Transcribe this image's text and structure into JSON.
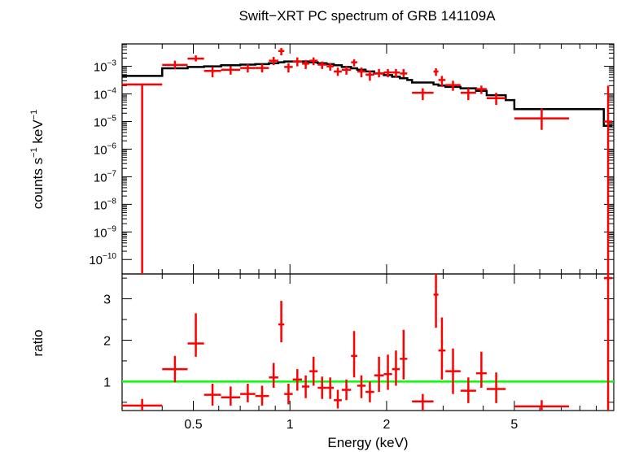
{
  "title": "Swift−XRT PC spectrum of GRB 141109A",
  "chart_data": [
    {
      "panel": "spectrum",
      "type": "scatter",
      "xscale": "log",
      "yscale": "log",
      "xlim": [
        0.3,
        10.2
      ],
      "ylim": [
        3e-11,
        0.0065
      ],
      "xlabel": "",
      "ylabel_parts": {
        "counts": "counts s",
        "exp": "−1",
        "kev": " keV",
        "exp2": "−1"
      },
      "yticks": [
        {
          "v": 0.001,
          "base": "10",
          "exp": "−3"
        },
        {
          "v": 0.0001,
          "base": "10",
          "exp": "−4"
        },
        {
          "v": 1e-05,
          "base": "10",
          "exp": "−5"
        },
        {
          "v": 1e-06,
          "base": "10",
          "exp": "−6"
        },
        {
          "v": 1e-07,
          "base": "10",
          "exp": "−7"
        },
        {
          "v": 1e-08,
          "base": "10",
          "exp": "−8"
        },
        {
          "v": 1e-09,
          "base": "10",
          "exp": "−9"
        },
        {
          "v": 1e-10,
          "base": "10",
          "exp": "−10"
        }
      ],
      "data_color": "#ff0000",
      "model_color": "#000000",
      "points": [
        {
          "xlo": 0.3,
          "xhi": 0.4,
          "y": 0.00022,
          "ylo": 3e-11,
          "yhi": 0.00022
        },
        {
          "xlo": 0.4,
          "xhi": 0.48,
          "y": 0.00112,
          "ylo": 0.0008,
          "yhi": 0.0016
        },
        {
          "xlo": 0.48,
          "xhi": 0.54,
          "y": 0.0019,
          "ylo": 0.0015,
          "yhi": 0.0025
        },
        {
          "xlo": 0.54,
          "xhi": 0.61,
          "y": 0.00068,
          "ylo": 0.0004,
          "yhi": 0.00095
        },
        {
          "xlo": 0.61,
          "xhi": 0.7,
          "y": 0.00075,
          "ylo": 0.0005,
          "yhi": 0.001
        },
        {
          "xlo": 0.7,
          "xhi": 0.78,
          "y": 0.00087,
          "ylo": 0.0006,
          "yhi": 0.0012
        },
        {
          "xlo": 0.78,
          "xhi": 0.86,
          "y": 0.00087,
          "ylo": 0.0006,
          "yhi": 0.0012
        },
        {
          "xlo": 0.86,
          "xhi": 0.92,
          "y": 0.0016,
          "ylo": 0.0011,
          "yhi": 0.0022
        },
        {
          "xlo": 0.92,
          "xhi": 0.96,
          "y": 0.0036,
          "ylo": 0.0025,
          "yhi": 0.0046
        },
        {
          "xlo": 0.96,
          "xhi": 1.02,
          "y": 0.00095,
          "ylo": 0.0006,
          "yhi": 0.0013
        },
        {
          "xlo": 1.02,
          "xhi": 1.09,
          "y": 0.0015,
          "ylo": 0.001,
          "yhi": 0.0021
        },
        {
          "xlo": 1.09,
          "xhi": 1.15,
          "y": 0.00125,
          "ylo": 0.0008,
          "yhi": 0.0017
        },
        {
          "xlo": 1.15,
          "xhi": 1.22,
          "y": 0.0016,
          "ylo": 0.0011,
          "yhi": 0.0021
        },
        {
          "xlo": 1.22,
          "xhi": 1.3,
          "y": 0.00115,
          "ylo": 0.0008,
          "yhi": 0.0015
        },
        {
          "xlo": 1.3,
          "xhi": 1.37,
          "y": 0.001,
          "ylo": 0.0007,
          "yhi": 0.0013
        },
        {
          "xlo": 1.37,
          "xhi": 1.45,
          "y": 0.00065,
          "ylo": 0.00045,
          "yhi": 0.0009
        },
        {
          "xlo": 1.45,
          "xhi": 1.55,
          "y": 0.00075,
          "ylo": 0.0005,
          "yhi": 0.001
        },
        {
          "xlo": 1.55,
          "xhi": 1.62,
          "y": 0.0014,
          "ylo": 0.001,
          "yhi": 0.0018
        },
        {
          "xlo": 1.62,
          "xhi": 1.72,
          "y": 0.00065,
          "ylo": 0.0004,
          "yhi": 0.0009
        },
        {
          "xlo": 1.72,
          "xhi": 1.83,
          "y": 0.0005,
          "ylo": 0.0003,
          "yhi": 0.0007
        },
        {
          "xlo": 1.83,
          "xhi": 1.96,
          "y": 0.00055,
          "ylo": 0.0004,
          "yhi": 0.0008
        },
        {
          "xlo": 1.96,
          "xhi": 2.08,
          "y": 0.0006,
          "ylo": 0.0004,
          "yhi": 0.0008
        },
        {
          "xlo": 2.08,
          "xhi": 2.2,
          "y": 0.0006,
          "ylo": 0.0004,
          "yhi": 0.0008
        },
        {
          "xlo": 2.2,
          "xhi": 2.32,
          "y": 0.00055,
          "ylo": 0.0004,
          "yhi": 0.0008
        },
        {
          "xlo": 2.4,
          "xhi": 2.8,
          "y": 0.00011,
          "ylo": 6e-05,
          "yhi": 0.00016
        },
        {
          "xlo": 2.8,
          "xhi": 2.9,
          "y": 0.00065,
          "ylo": 0.00045,
          "yhi": 0.00085
        },
        {
          "xlo": 2.9,
          "xhi": 3.05,
          "y": 0.00032,
          "ylo": 0.00018,
          "yhi": 0.00045
        },
        {
          "xlo": 3.05,
          "xhi": 3.4,
          "y": 0.00021,
          "ylo": 0.00013,
          "yhi": 0.0003
        },
        {
          "xlo": 3.4,
          "xhi": 3.8,
          "y": 0.00011,
          "ylo": 6e-05,
          "yhi": 0.00016
        },
        {
          "xlo": 3.8,
          "xhi": 4.1,
          "y": 0.00015,
          "ylo": 0.0001,
          "yhi": 0.0002
        },
        {
          "xlo": 4.1,
          "xhi": 4.7,
          "y": 7e-05,
          "ylo": 4e-05,
          "yhi": 0.00011
        },
        {
          "xlo": 5.0,
          "xhi": 7.4,
          "y": 1.3e-05,
          "ylo": 5e-06,
          "yhi": 3e-05
        },
        {
          "xlo": 9.5,
          "xhi": 10.1,
          "y": 1e-05,
          "ylo": 3e-11,
          "yhi": 0.0002
        }
      ],
      "model": [
        {
          "xlo": 0.3,
          "xhi": 0.4,
          "y": 0.00045
        },
        {
          "xlo": 0.4,
          "xhi": 0.48,
          "y": 0.00085
        },
        {
          "xlo": 0.48,
          "xhi": 0.54,
          "y": 0.00095
        },
        {
          "xlo": 0.54,
          "xhi": 0.61,
          "y": 0.001
        },
        {
          "xlo": 0.61,
          "xhi": 0.7,
          "y": 0.0011
        },
        {
          "xlo": 0.7,
          "xhi": 0.78,
          "y": 0.00115
        },
        {
          "xlo": 0.78,
          "xhi": 0.86,
          "y": 0.0012
        },
        {
          "xlo": 0.86,
          "xhi": 0.92,
          "y": 0.0013
        },
        {
          "xlo": 0.92,
          "xhi": 0.96,
          "y": 0.0014
        },
        {
          "xlo": 0.96,
          "xhi": 1.02,
          "y": 0.0015
        },
        {
          "xlo": 1.02,
          "xhi": 1.09,
          "y": 0.0015
        },
        {
          "xlo": 1.09,
          "xhi": 1.15,
          "y": 0.0015
        },
        {
          "xlo": 1.15,
          "xhi": 1.22,
          "y": 0.0014
        },
        {
          "xlo": 1.22,
          "xhi": 1.3,
          "y": 0.0013
        },
        {
          "xlo": 1.3,
          "xhi": 1.37,
          "y": 0.0012
        },
        {
          "xlo": 1.37,
          "xhi": 1.45,
          "y": 0.0011
        },
        {
          "xlo": 1.45,
          "xhi": 1.55,
          "y": 0.00095
        },
        {
          "xlo": 1.55,
          "xhi": 1.62,
          "y": 0.00085
        },
        {
          "xlo": 1.62,
          "xhi": 1.72,
          "y": 0.00075
        },
        {
          "xlo": 1.72,
          "xhi": 1.83,
          "y": 0.00065
        },
        {
          "xlo": 1.83,
          "xhi": 1.96,
          "y": 0.00055
        },
        {
          "xlo": 1.96,
          "xhi": 2.08,
          "y": 0.00048
        },
        {
          "xlo": 2.08,
          "xhi": 2.2,
          "y": 0.00042
        },
        {
          "xlo": 2.2,
          "xhi": 2.32,
          "y": 0.00037
        },
        {
          "xlo": 2.32,
          "xhi": 2.4,
          "y": 0.00032
        },
        {
          "xlo": 2.4,
          "xhi": 2.8,
          "y": 0.00026
        },
        {
          "xlo": 2.8,
          "xhi": 2.9,
          "y": 0.00022
        },
        {
          "xlo": 2.9,
          "xhi": 3.05,
          "y": 0.0002
        },
        {
          "xlo": 3.05,
          "xhi": 3.4,
          "y": 0.00018
        },
        {
          "xlo": 3.4,
          "xhi": 3.8,
          "y": 0.00016
        },
        {
          "xlo": 3.8,
          "xhi": 4.1,
          "y": 0.00013
        },
        {
          "xlo": 4.1,
          "xhi": 4.7,
          "y": 9e-05
        },
        {
          "xlo": 4.7,
          "xhi": 5.0,
          "y": 6e-05
        },
        {
          "xlo": 5.0,
          "xhi": 7.4,
          "y": 2.8e-05
        },
        {
          "xlo": 7.4,
          "xhi": 9.5,
          "y": 2.8e-05
        },
        {
          "xlo": 9.5,
          "xhi": 10.1,
          "y": 7e-06
        }
      ]
    },
    {
      "panel": "ratio",
      "type": "scatter",
      "xscale": "log",
      "yscale": "linear",
      "xlim": [
        0.3,
        10.2
      ],
      "ylim": [
        0.3,
        3.6
      ],
      "xlabel": "Energy (keV)",
      "ylabel": "ratio",
      "xticks": [
        {
          "v": 0.5,
          "label": "0.5"
        },
        {
          "v": 1,
          "label": "1"
        },
        {
          "v": 2,
          "label": "2"
        },
        {
          "v": 5,
          "label": "5"
        }
      ],
      "yticks": [
        {
          "v": 1,
          "label": "1"
        },
        {
          "v": 2,
          "label": "2"
        },
        {
          "v": 3,
          "label": "3"
        }
      ],
      "reference_line": {
        "y": 1,
        "color": "#00ff00"
      },
      "data_color": "#ff0000",
      "points": [
        {
          "xlo": 0.3,
          "xhi": 0.4,
          "y": 0.42,
          "ylo": 0.3,
          "yhi": 0.58
        },
        {
          "xlo": 0.4,
          "xhi": 0.48,
          "y": 1.3,
          "ylo": 0.98,
          "yhi": 1.62
        },
        {
          "xlo": 0.48,
          "xhi": 0.54,
          "y": 1.92,
          "ylo": 1.6,
          "yhi": 2.65
        },
        {
          "xlo": 0.54,
          "xhi": 0.61,
          "y": 0.68,
          "ylo": 0.42,
          "yhi": 0.95
        },
        {
          "xlo": 0.61,
          "xhi": 0.7,
          "y": 0.62,
          "ylo": 0.42,
          "yhi": 0.88
        },
        {
          "xlo": 0.7,
          "xhi": 0.78,
          "y": 0.7,
          "ylo": 0.5,
          "yhi": 0.95
        },
        {
          "xlo": 0.78,
          "xhi": 0.86,
          "y": 0.65,
          "ylo": 0.42,
          "yhi": 0.9
        },
        {
          "xlo": 0.86,
          "xhi": 0.92,
          "y": 1.1,
          "ylo": 0.85,
          "yhi": 1.45
        },
        {
          "xlo": 0.92,
          "xhi": 0.96,
          "y": 2.38,
          "ylo": 1.95,
          "yhi": 2.95
        },
        {
          "xlo": 0.96,
          "xhi": 1.02,
          "y": 0.7,
          "ylo": 0.45,
          "yhi": 0.95
        },
        {
          "xlo": 1.02,
          "xhi": 1.09,
          "y": 1.05,
          "ylo": 0.78,
          "yhi": 1.3
        },
        {
          "xlo": 1.09,
          "xhi": 1.15,
          "y": 0.88,
          "ylo": 0.6,
          "yhi": 1.15
        },
        {
          "xlo": 1.15,
          "xhi": 1.22,
          "y": 1.25,
          "ylo": 0.9,
          "yhi": 1.6
        },
        {
          "xlo": 1.22,
          "xhi": 1.3,
          "y": 0.85,
          "ylo": 0.58,
          "yhi": 1.12
        },
        {
          "xlo": 1.3,
          "xhi": 1.37,
          "y": 0.85,
          "ylo": 0.58,
          "yhi": 1.1
        },
        {
          "xlo": 1.37,
          "xhi": 1.45,
          "y": 0.55,
          "ylo": 0.35,
          "yhi": 0.8
        },
        {
          "xlo": 1.45,
          "xhi": 1.55,
          "y": 0.8,
          "ylo": 0.55,
          "yhi": 1.05
        },
        {
          "xlo": 1.55,
          "xhi": 1.62,
          "y": 1.62,
          "ylo": 1.1,
          "yhi": 2.22
        },
        {
          "xlo": 1.62,
          "xhi": 1.72,
          "y": 0.9,
          "ylo": 0.6,
          "yhi": 1.15
        },
        {
          "xlo": 1.72,
          "xhi": 1.83,
          "y": 0.75,
          "ylo": 0.5,
          "yhi": 1.0
        },
        {
          "xlo": 1.83,
          "xhi": 1.96,
          "y": 1.15,
          "ylo": 0.75,
          "yhi": 1.6
        },
        {
          "xlo": 1.96,
          "xhi": 2.08,
          "y": 1.18,
          "ylo": 0.8,
          "yhi": 1.65
        },
        {
          "xlo": 2.08,
          "xhi": 2.2,
          "y": 1.3,
          "ylo": 0.9,
          "yhi": 1.75
        },
        {
          "xlo": 2.2,
          "xhi": 2.32,
          "y": 1.55,
          "ylo": 1.05,
          "yhi": 2.25
        },
        {
          "xlo": 2.4,
          "xhi": 2.8,
          "y": 0.52,
          "ylo": 0.3,
          "yhi": 0.7
        },
        {
          "xlo": 2.8,
          "xhi": 2.9,
          "y": 3.1,
          "ylo": 2.3,
          "yhi": 3.6
        },
        {
          "xlo": 2.9,
          "xhi": 3.05,
          "y": 1.75,
          "ylo": 1.05,
          "yhi": 2.55
        },
        {
          "xlo": 3.05,
          "xhi": 3.4,
          "y": 1.25,
          "ylo": 0.7,
          "yhi": 1.8
        },
        {
          "xlo": 3.4,
          "xhi": 3.8,
          "y": 0.78,
          "ylo": 0.48,
          "yhi": 1.1
        },
        {
          "xlo": 3.8,
          "xhi": 4.1,
          "y": 1.2,
          "ylo": 0.85,
          "yhi": 1.72
        },
        {
          "xlo": 4.1,
          "xhi": 4.7,
          "y": 0.82,
          "ylo": 0.48,
          "yhi": 1.22
        },
        {
          "xlo": 5.0,
          "xhi": 7.4,
          "y": 0.4,
          "ylo": 0.3,
          "yhi": 0.55
        },
        {
          "xlo": 9.5,
          "xhi": 10.1,
          "y": 3.5,
          "ylo": 0.3,
          "yhi": 3.6
        }
      ]
    }
  ]
}
